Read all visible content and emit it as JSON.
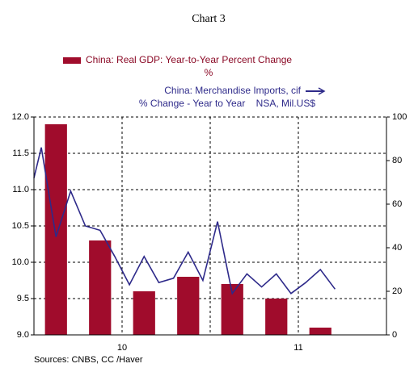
{
  "chart_data": {
    "type": "bar_line",
    "title": "Chart 3",
    "source": "Sources: CNBS, CC /Haver",
    "series": [
      {
        "name": "China: Real GDP: Year-to-Year Percent Change",
        "note": "%",
        "type": "bar",
        "color": "#a00c2c",
        "x": [
          1.5,
          4.5,
          7.5,
          10.5,
          13.5,
          16.5,
          19.5
        ],
        "values": [
          11.9,
          10.3,
          9.6,
          9.8,
          9.7,
          9.5,
          9.1
        ]
      },
      {
        "name": "China: Merchandise Imports, cif",
        "note": "% Change - Year to Year    NSA, Mil.US$",
        "type": "line",
        "axis": "y2",
        "color": "#2e2a8a",
        "x": [
          0,
          0.5,
          1.5,
          2.5,
          3.5,
          4.5,
          5.5,
          6.5,
          7.5,
          8.5,
          9.5,
          10.5,
          11.5,
          12.5,
          13.5,
          14.5,
          15.5,
          16.5,
          17.5,
          18.5,
          19.5,
          20.5
        ],
        "values": [
          72,
          86,
          45,
          66,
          50,
          48,
          36,
          23,
          36,
          24,
          26,
          38,
          25,
          52,
          19,
          28,
          22,
          28,
          19,
          24,
          30,
          21
        ]
      }
    ],
    "xlim": [
      0,
      24
    ],
    "xticks": [
      {
        "value": 6,
        "label": "10"
      },
      {
        "value": 18,
        "label": "11"
      }
    ],
    "xgrid": [
      6,
      12,
      18
    ],
    "ylim": [
      9.0,
      12.0
    ],
    "yticks": [
      {
        "value": 9.0,
        "label": "9.0"
      },
      {
        "value": 9.5,
        "label": "9.5"
      },
      {
        "value": 10.0,
        "label": "10.0"
      },
      {
        "value": 10.5,
        "label": "10.5"
      },
      {
        "value": 11.0,
        "label": "11.0"
      },
      {
        "value": 11.5,
        "label": "11.5"
      },
      {
        "value": 12.0,
        "label": "12.0"
      }
    ],
    "y2lim": [
      0,
      100
    ],
    "y2ticks": [
      0,
      20,
      40,
      60,
      80,
      100
    ],
    "grid": true
  }
}
